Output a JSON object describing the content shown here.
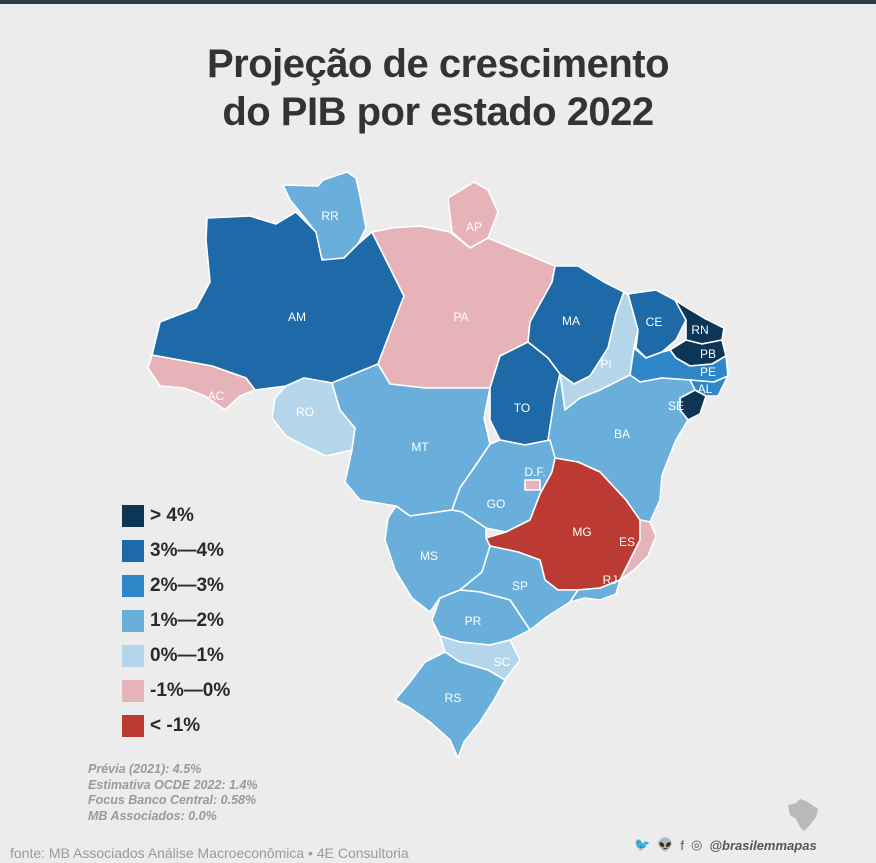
{
  "title": {
    "line1": "Projeção de crescimento",
    "line2": "do PIB por estado 2022"
  },
  "colors": {
    "gt4": "#0d3556",
    "p3_4": "#1e6aa8",
    "p2_3": "#2f86c8",
    "p1_2": "#6aaedb",
    "p0_1": "#b5d6ea",
    "n1_0": "#e6b4b8",
    "lt_n1": "#bb3a33",
    "border": "#ffffff",
    "background": "#ececec"
  },
  "legend": [
    {
      "label": "> 4%",
      "color": "#0d3556"
    },
    {
      "label": "3%—4%",
      "color": "#1e6aa8"
    },
    {
      "label": "2%—3%",
      "color": "#2f86c8"
    },
    {
      "label": "1%—2%",
      "color": "#6aaedb"
    },
    {
      "label": "0%—1%",
      "color": "#b5d6ea"
    },
    {
      "label": "-1%—0%",
      "color": "#e6b4b8"
    },
    {
      "label": "< -1%",
      "color": "#bb3a33"
    }
  ],
  "states": [
    {
      "code": "RR",
      "category": "1%—2%",
      "color": "#6aaedb"
    },
    {
      "code": "AP",
      "category": "-1%—0%",
      "color": "#e6b4b8"
    },
    {
      "code": "AM",
      "category": "3%—4%",
      "color": "#1e6aa8"
    },
    {
      "code": "PA",
      "category": "-1%—0%",
      "color": "#e6b4b8"
    },
    {
      "code": "AC",
      "category": "-1%—0%",
      "color": "#e6b4b8"
    },
    {
      "code": "RO",
      "category": "0%—1%",
      "color": "#b5d6ea"
    },
    {
      "code": "MA",
      "category": "3%—4%",
      "color": "#1e6aa8"
    },
    {
      "code": "PI",
      "category": "0%—1%",
      "color": "#b5d6ea"
    },
    {
      "code": "CE",
      "category": "3%—4%",
      "color": "#1e6aa8"
    },
    {
      "code": "RN",
      "category": "> 4%",
      "color": "#0d3556"
    },
    {
      "code": "PB",
      "category": "> 4%",
      "color": "#0d3556"
    },
    {
      "code": "PE",
      "category": "2%—3%",
      "color": "#2f86c8"
    },
    {
      "code": "AL",
      "category": "2%—3%",
      "color": "#2f86c8"
    },
    {
      "code": "SE",
      "category": "> 4%",
      "color": "#0d3556"
    },
    {
      "code": "TO",
      "category": "3%—4%",
      "color": "#1e6aa8"
    },
    {
      "code": "BA",
      "category": "1%—2%",
      "color": "#6aaedb"
    },
    {
      "code": "MT",
      "category": "1%—2%",
      "color": "#6aaedb"
    },
    {
      "code": "GO",
      "category": "1%—2%",
      "color": "#6aaedb"
    },
    {
      "code": "D.F.",
      "category": "-1%—0%",
      "color": "#e6b4b8"
    },
    {
      "code": "MG",
      "category": "< -1%",
      "color": "#bb3a33"
    },
    {
      "code": "ES",
      "category": "-1%—0%",
      "color": "#e6b4b8"
    },
    {
      "code": "MS",
      "category": "1%—2%",
      "color": "#6aaedb"
    },
    {
      "code": "SP",
      "category": "1%—2%",
      "color": "#6aaedb"
    },
    {
      "code": "RJ",
      "category": "1%—2%",
      "color": "#6aaedb"
    },
    {
      "code": "PR",
      "category": "1%—2%",
      "color": "#6aaedb"
    },
    {
      "code": "SC",
      "category": "0%—1%",
      "color": "#b5d6ea"
    },
    {
      "code": "RS",
      "category": "1%—2%",
      "color": "#6aaedb"
    }
  ],
  "notes": [
    "Prévia (2021): 4.5%",
    "Estimativa OCDE 2022: 1.4%",
    "Focus Banco Central: 0.58%",
    "MB Associados: 0.0%"
  ],
  "source": "fonte: MB Associados Análise Macroeconômica  • 4E Consultoria",
  "social": {
    "icons": [
      "twitter-icon",
      "reddit-icon",
      "facebook-icon",
      "instagram-icon"
    ],
    "icon_glyphs": [
      "🐦",
      "👽",
      "f",
      "◎"
    ],
    "handle": "@brasilemmapas"
  }
}
